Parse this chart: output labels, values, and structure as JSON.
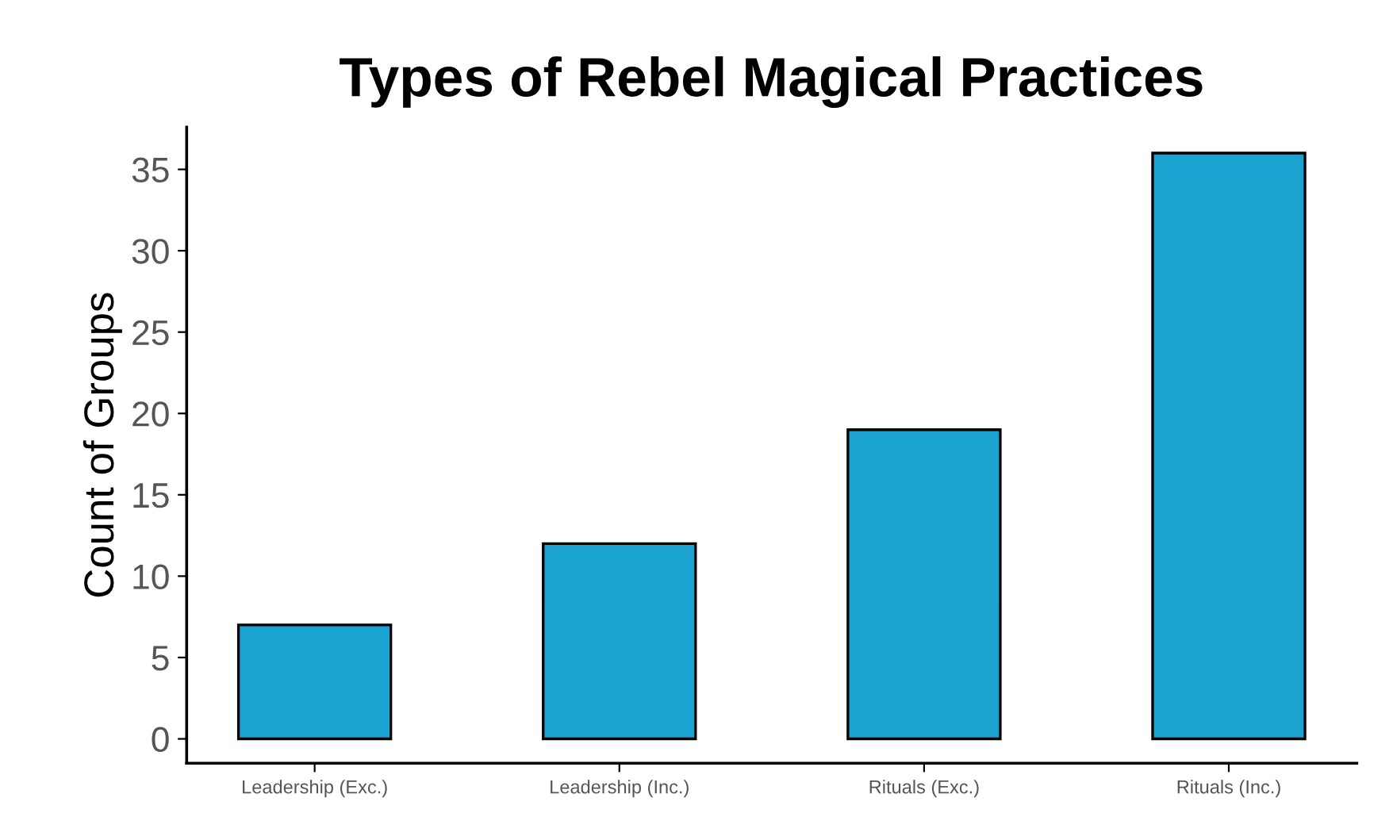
{
  "chart_data": {
    "type": "bar",
    "title": "Types of Rebel Magical Practices",
    "ylabel": "Count of Groups",
    "categories": [
      "Leadership (Exc.)",
      "Leadership (Inc.)",
      "Rituals (Exc.)",
      "Rituals (Inc.)"
    ],
    "values": [
      7,
      12,
      19,
      36
    ],
    "color": "#1aa3d1",
    "ylim": [
      -1.5,
      37.6
    ],
    "yticks": [
      0,
      5,
      10,
      15,
      20,
      25,
      30,
      35
    ],
    "grid": false,
    "legend": false
  }
}
